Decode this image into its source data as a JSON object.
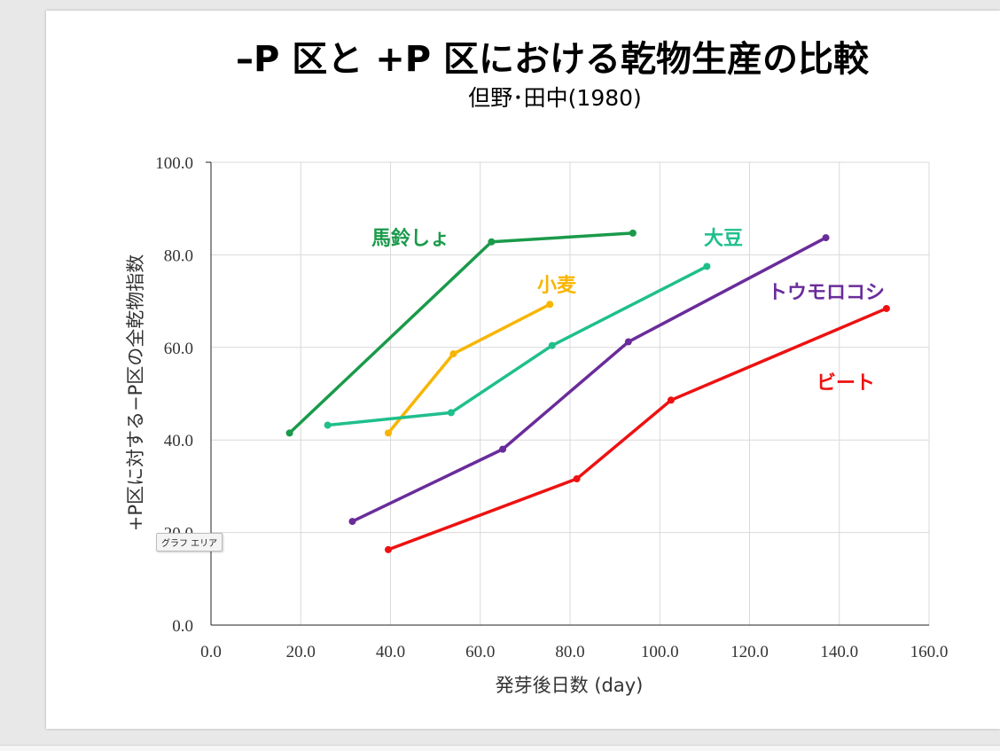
{
  "tooltip": {
    "text": "グラフ エリア"
  },
  "chart_data": {
    "type": "line",
    "title": "–P 区と +P 区における乾物生産の比較",
    "subtitle": "但野･田中(1980)",
    "xlabel": "発芽後日数 (day)",
    "ylabel": "+P区に対する−P区の全乾物指数",
    "xlim": [
      0,
      160
    ],
    "ylim": [
      0,
      100
    ],
    "xticks": [
      "0.0",
      "20.0",
      "40.0",
      "60.0",
      "80.0",
      "100.0",
      "120.0",
      "140.0",
      "160.0"
    ],
    "yticks": [
      "0.0",
      "20.0",
      "40.0",
      "60.0",
      "80.0",
      "100.0"
    ],
    "grid": true,
    "series": [
      {
        "name": "馬鈴しょ",
        "color": "#1a9a4a",
        "x": [
          17.5,
          62.5,
          94
        ],
        "y": [
          41.5,
          82.8,
          84.7
        ]
      },
      {
        "name": "小麦",
        "color": "#f7b500",
        "x": [
          39.5,
          54,
          75.5
        ],
        "y": [
          41.5,
          58.6,
          69.3
        ]
      },
      {
        "name": "大豆",
        "color": "#1fbf8c",
        "x": [
          26,
          53.5,
          76,
          110.5
        ],
        "y": [
          43.2,
          45.9,
          60.4,
          77.5
        ]
      },
      {
        "name": "トウモロコシ",
        "color": "#6a2c9a",
        "x": [
          31.5,
          65,
          93,
          137
        ],
        "y": [
          22.4,
          38,
          61.2,
          83.7
        ]
      },
      {
        "name": "ビート",
        "color": "#ee1111",
        "x": [
          39.5,
          81.5,
          102.5,
          150.5
        ],
        "y": [
          16.3,
          31.6,
          48.6,
          68.4
        ]
      }
    ]
  }
}
